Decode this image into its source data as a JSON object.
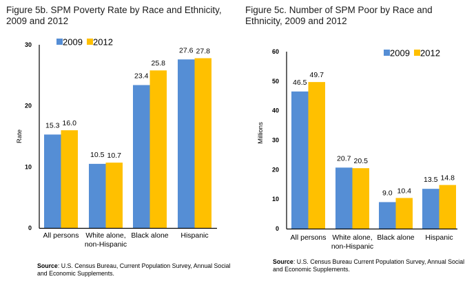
{
  "colors": {
    "series_2009": "#558ED5",
    "series_2012": "#FFC000",
    "axis": "#000000"
  },
  "chart_data": [
    {
      "id": "fig5b",
      "type": "bar",
      "title": "Figure 5b. SPM Poverty Rate by Race and Ethnicity, 2009 and 2012",
      "xlabel": "",
      "ylabel": "Rate",
      "ylim": [
        0,
        30
      ],
      "yticks": [
        0,
        10,
        20,
        30
      ],
      "grid": false,
      "legend_position": "top-left",
      "categories": [
        [
          "All persons"
        ],
        [
          "White alone,",
          "non-Hispanic"
        ],
        [
          "Black alone"
        ],
        [
          "Hispanic"
        ]
      ],
      "series": [
        {
          "name": "2009",
          "values": [
            15.3,
            10.5,
            23.4,
            27.6
          ],
          "labels": [
            "15.3",
            "10.5",
            "23.4",
            "27.6"
          ]
        },
        {
          "name": "2012",
          "values": [
            16.0,
            10.7,
            25.8,
            27.8
          ],
          "labels": [
            "16.0",
            "10.7",
            "25.8",
            "27.8"
          ]
        }
      ],
      "source_label": "Source",
      "source_text": ": U.S. Census Bureau, Current Population Survey, Annual Social and Economic Supplements."
    },
    {
      "id": "fig5c",
      "type": "bar",
      "title": "Figure 5c. Number of SPM Poor by Race and Ethnicity, 2009 and 2012",
      "xlabel": "",
      "ylabel": "Millions",
      "ylim": [
        0,
        60
      ],
      "yticks": [
        0,
        10,
        20,
        30,
        40,
        50,
        60
      ],
      "grid": false,
      "legend_position": "top-right",
      "categories": [
        [
          "All persons"
        ],
        [
          "White alone,",
          "non-Hispanic"
        ],
        [
          "Black alone"
        ],
        [
          "Hispanic"
        ]
      ],
      "series": [
        {
          "name": "2009",
          "values": [
            46.5,
            20.7,
            9.0,
            13.5
          ],
          "labels": [
            "46.5",
            "20.7",
            "9.0",
            "13.5"
          ]
        },
        {
          "name": "2012",
          "values": [
            49.7,
            20.5,
            10.4,
            14.8
          ],
          "labels": [
            "49.7",
            "20.5",
            "10.4",
            "14.8"
          ]
        }
      ],
      "source_label": "Source",
      "source_text": ": U.S. Census Bureau Current Population Survey, Annual Social and Economic Supplements."
    }
  ]
}
